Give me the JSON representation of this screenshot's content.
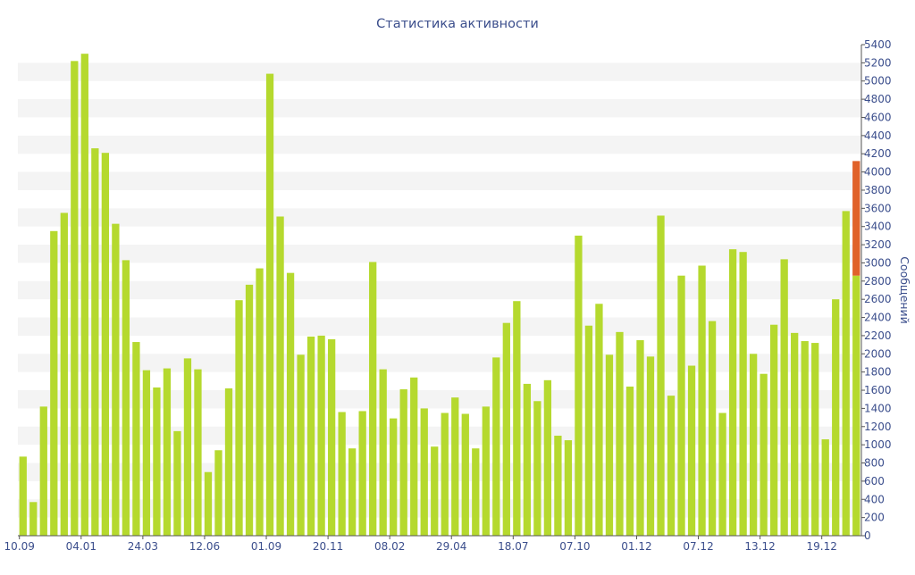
{
  "chart_data": {
    "type": "bar",
    "title": "Статистика активности",
    "ylabel": "Сообщений",
    "xlabel": "",
    "ylim": [
      0,
      5400
    ],
    "y_ticks": [
      0,
      200,
      400,
      600,
      800,
      1000,
      1200,
      1400,
      1600,
      1800,
      2000,
      2200,
      2400,
      2600,
      2800,
      3000,
      3200,
      3400,
      3600,
      3800,
      4000,
      4200,
      4400,
      4600,
      4800,
      5000,
      5200,
      5400
    ],
    "x_tick_labels": [
      {
        "index": 0,
        "label": "10.09"
      },
      {
        "index": 6,
        "label": "04.01"
      },
      {
        "index": 12,
        "label": "24.03"
      },
      {
        "index": 18,
        "label": "12.06"
      },
      {
        "index": 24,
        "label": "01.09"
      },
      {
        "index": 30,
        "label": "20.11"
      },
      {
        "index": 36,
        "label": "08.02"
      },
      {
        "index": 42,
        "label": "29.04"
      },
      {
        "index": 48,
        "label": "18.07"
      },
      {
        "index": 54,
        "label": "07.10"
      },
      {
        "index": 60,
        "label": "01.12"
      },
      {
        "index": 66,
        "label": "07.12"
      },
      {
        "index": 72,
        "label": "13.12"
      },
      {
        "index": 78,
        "label": "19.12"
      }
    ],
    "colors": {
      "bar": "#b5d92e",
      "highlight": "#e0622a",
      "axis_text": "#3b4e8c",
      "band": "#f4f4f4"
    },
    "grid": "alternating horizontal bands",
    "y_axis_position": "right",
    "values": [
      870,
      370,
      1420,
      3350,
      3550,
      5220,
      5300,
      4260,
      4210,
      3430,
      3030,
      2130,
      1820,
      1630,
      1840,
      1150,
      1950,
      1830,
      700,
      940,
      1620,
      2590,
      2760,
      2940,
      5080,
      3510,
      2890,
      1990,
      2190,
      2200,
      2160,
      1360,
      960,
      1370,
      3010,
      1830,
      1290,
      1610,
      1740,
      1400,
      980,
      1350,
      1520,
      1340,
      960,
      1420,
      1960,
      2340,
      2580,
      1670,
      1480,
      1710,
      1100,
      1050,
      3300,
      2310,
      2550,
      1990,
      2240,
      1640,
      2150,
      1970,
      3520,
      1540,
      2860,
      1870,
      2970,
      2360,
      1350,
      3150,
      3120,
      2000,
      1780,
      2320,
      3040,
      2230,
      2140,
      2120,
      1060,
      2600,
      3570,
      2860
    ],
    "highlight": {
      "index": 81,
      "base": 2860,
      "top": 4120
    }
  }
}
